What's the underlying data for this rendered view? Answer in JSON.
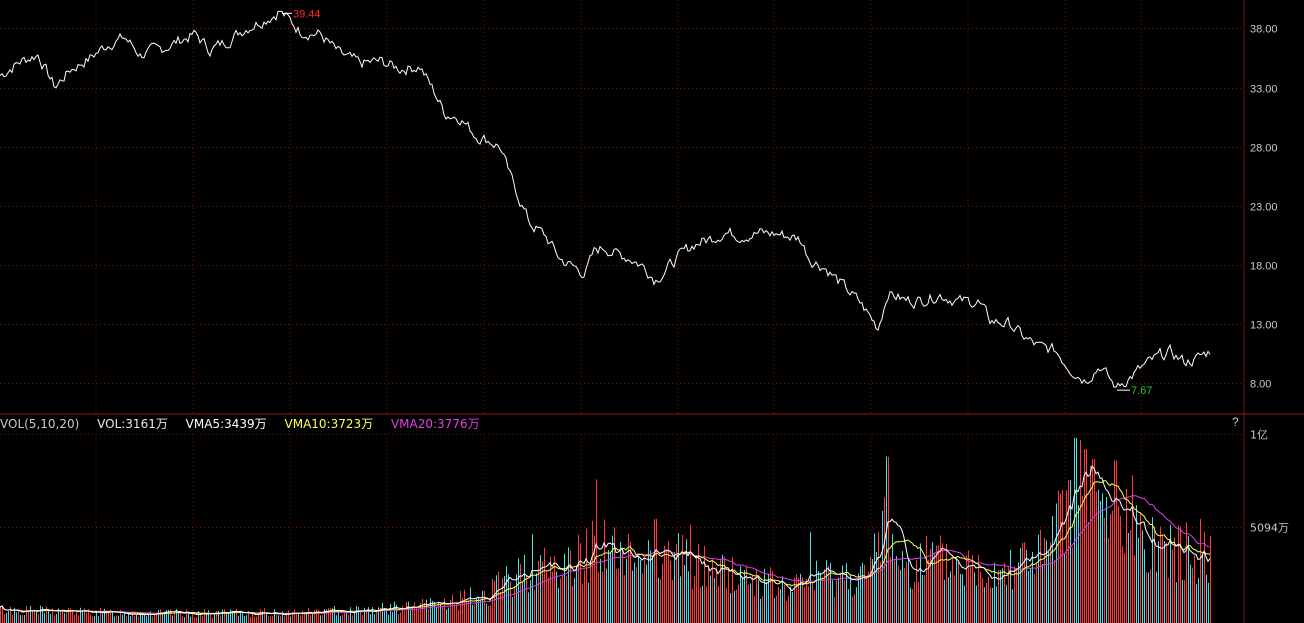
{
  "colors": {
    "background": "#000000",
    "grid": "#7a1010",
    "price_line": "#ffffff",
    "high_label": "#ff2a2a",
    "low_label": "#22cc22",
    "axis_text": "#c8c8c8",
    "vol_up": "#ff3b3b",
    "vol_down": "#54d9e8",
    "vma5": "#ffffff",
    "vma10": "#ffff55",
    "vma20": "#e040e0"
  },
  "volume_legend": {
    "indicator": "VOL(5,10,20)",
    "vol": "VOL:3161万",
    "vma5": "VMA5:3439万",
    "vma10": "VMA10:3723万",
    "vma20": "VMA20:3776万"
  },
  "help_label": "?",
  "chart_data": [
    {
      "type": "line",
      "name": "price",
      "ylim": [
        5.4,
        40.4
      ],
      "yticks": [
        {
          "value": 38.0,
          "label": "38.00"
        },
        {
          "value": 33.0,
          "label": "33.00"
        },
        {
          "value": 28.0,
          "label": "28.00"
        },
        {
          "value": 23.0,
          "label": "23.00"
        },
        {
          "value": 18.0,
          "label": "18.00"
        },
        {
          "value": 13.0,
          "label": "13.00"
        },
        {
          "value": 8.0,
          "label": "8.00"
        }
      ],
      "anchors": [
        [
          0,
          34.0
        ],
        [
          20,
          35.2
        ],
        [
          38,
          35.8
        ],
        [
          55,
          33.0
        ],
        [
          70,
          34.5
        ],
        [
          90,
          35.5
        ],
        [
          110,
          36.8
        ],
        [
          125,
          37.2
        ],
        [
          140,
          35.8
        ],
        [
          160,
          36.2
        ],
        [
          180,
          37.0
        ],
        [
          195,
          37.5
        ],
        [
          210,
          36.2
        ],
        [
          225,
          36.8
        ],
        [
          245,
          38.0
        ],
        [
          265,
          38.8
        ],
        [
          280,
          39.44
        ],
        [
          300,
          37.8
        ],
        [
          320,
          37.5
        ],
        [
          340,
          35.8
        ],
        [
          360,
          35.0
        ],
        [
          380,
          35.2
        ],
        [
          400,
          34.6
        ],
        [
          420,
          34.8
        ],
        [
          435,
          32.5
        ],
        [
          445,
          30.8
        ],
        [
          460,
          30.5
        ],
        [
          475,
          29.0
        ],
        [
          490,
          28.5
        ],
        [
          500,
          28.0
        ],
        [
          510,
          25.5
        ],
        [
          520,
          23.5
        ],
        [
          530,
          21.5
        ],
        [
          545,
          20.5
        ],
        [
          560,
          18.5
        ],
        [
          570,
          18.0
        ],
        [
          585,
          17.3
        ],
        [
          595,
          19.2
        ],
        [
          605,
          19.5
        ],
        [
          615,
          19.0
        ],
        [
          630,
          18.6
        ],
        [
          645,
          17.8
        ],
        [
          655,
          16.8
        ],
        [
          665,
          17.5
        ],
        [
          680,
          18.8
        ],
        [
          695,
          19.8
        ],
        [
          710,
          20.2
        ],
        [
          725,
          20.8
        ],
        [
          740,
          20.5
        ],
        [
          760,
          20.7
        ],
        [
          780,
          20.6
        ],
        [
          800,
          20.2
        ],
        [
          810,
          18.5
        ],
        [
          825,
          17.8
        ],
        [
          840,
          16.5
        ],
        [
          860,
          14.8
        ],
        [
          878,
          12.7
        ],
        [
          888,
          15.7
        ],
        [
          905,
          15.0
        ],
        [
          920,
          15.0
        ],
        [
          940,
          15.5
        ],
        [
          960,
          14.9
        ],
        [
          978,
          14.9
        ],
        [
          990,
          13.3
        ],
        [
          1010,
          13.0
        ],
        [
          1025,
          11.8
        ],
        [
          1040,
          11.0
        ],
        [
          1055,
          10.8
        ],
        [
          1070,
          9.3
        ],
        [
          1085,
          8.3
        ],
        [
          1100,
          9.5
        ],
        [
          1115,
          7.67
        ],
        [
          1130,
          8.5
        ],
        [
          1145,
          9.5
        ],
        [
          1160,
          10.3
        ],
        [
          1170,
          10.6
        ],
        [
          1185,
          9.8
        ],
        [
          1195,
          10.0
        ],
        [
          1210,
          10.7
        ]
      ],
      "high": {
        "value": 39.44,
        "label": "39.44"
      },
      "low": {
        "value": 7.67,
        "label": "7.67"
      }
    },
    {
      "type": "bar",
      "name": "volume",
      "ylim": [
        0,
        100000000
      ],
      "yticks": [
        {
          "value": 100000000,
          "label": "1亿"
        },
        {
          "value": 50940000,
          "label": "5094万"
        }
      ],
      "anchors": [
        [
          0,
          7
        ],
        [
          100,
          5.5
        ],
        [
          200,
          5
        ],
        [
          300,
          5.5
        ],
        [
          400,
          8
        ],
        [
          440,
          10
        ],
        [
          480,
          14
        ],
        [
          510,
          22
        ],
        [
          530,
          30
        ],
        [
          560,
          28
        ],
        [
          580,
          34
        ],
        [
          600,
          45
        ],
        [
          620,
          33
        ],
        [
          650,
          36
        ],
        [
          680,
          34
        ],
        [
          700,
          30
        ],
        [
          730,
          26
        ],
        [
          760,
          22
        ],
        [
          790,
          17
        ],
        [
          810,
          24
        ],
        [
          840,
          25
        ],
        [
          870,
          25
        ],
        [
          885,
          60
        ],
        [
          900,
          30
        ],
        [
          930,
          34
        ],
        [
          960,
          30
        ],
        [
          990,
          28
        ],
        [
          1020,
          34
        ],
        [
          1050,
          37
        ],
        [
          1065,
          60
        ],
        [
          1078,
          80
        ],
        [
          1090,
          70
        ],
        [
          1110,
          52
        ],
        [
          1130,
          55
        ],
        [
          1150,
          46
        ],
        [
          1170,
          38
        ],
        [
          1190,
          37
        ],
        [
          1210,
          38
        ]
      ],
      "spikes": [
        [
          532,
          47
        ],
        [
          596,
          76
        ],
        [
          655,
          55
        ],
        [
          690,
          52
        ],
        [
          810,
          48
        ],
        [
          887,
          88
        ],
        [
          1075,
          98
        ],
        [
          1085,
          92
        ],
        [
          1115,
          86
        ],
        [
          1140,
          58
        ],
        [
          1170,
          52
        ],
        [
          1200,
          55
        ]
      ]
    }
  ]
}
